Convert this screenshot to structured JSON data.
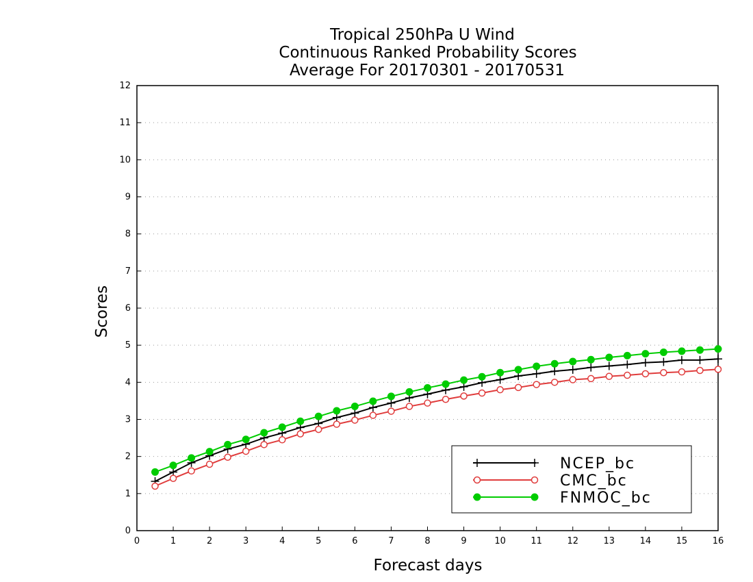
{
  "chart_data": {
    "type": "line",
    "title": [
      "Tropical 250hPa U Wind",
      "Continuous Ranked Probability Scores",
      "Average For 20170301 - 20170531"
    ],
    "xlabel": "Forecast days",
    "ylabel": "Scores",
    "xlim": [
      0,
      16
    ],
    "ylim": [
      0,
      12
    ],
    "xticks": [
      "0",
      "1",
      "2",
      "3",
      "4",
      "5",
      "6",
      "7",
      "8",
      "9",
      "10",
      "11",
      "12",
      "13",
      "14",
      "15",
      "16"
    ],
    "yticks": [
      "0",
      "1",
      "2",
      "3",
      "4",
      "5",
      "6",
      "7",
      "8",
      "9",
      "10",
      "11",
      "12"
    ],
    "grid": "horizontal dotted",
    "legend_position": "bottom-right",
    "x": [
      0.5,
      1,
      1.5,
      2,
      2.5,
      3,
      3.5,
      4,
      4.5,
      5,
      5.5,
      6,
      6.5,
      7,
      7.5,
      8,
      8.5,
      9,
      9.5,
      10,
      10.5,
      11,
      11.5,
      12,
      12.5,
      13,
      13.5,
      14,
      14.5,
      15,
      15.5,
      16
    ],
    "series": [
      {
        "name": "NCEP_bc",
        "color": "#000000",
        "marker": "plus",
        "values": [
          1.33,
          1.58,
          1.83,
          2.02,
          2.2,
          2.33,
          2.5,
          2.63,
          2.78,
          2.89,
          3.05,
          3.17,
          3.32,
          3.44,
          3.58,
          3.68,
          3.79,
          3.88,
          3.99,
          4.07,
          4.17,
          4.23,
          4.3,
          4.34,
          4.4,
          4.44,
          4.48,
          4.53,
          4.55,
          4.6,
          4.6,
          4.63
        ]
      },
      {
        "name": "CMC_bc",
        "color": "#e03c3c",
        "marker": "open-circle",
        "values": [
          1.2,
          1.41,
          1.61,
          1.79,
          1.98,
          2.14,
          2.32,
          2.45,
          2.61,
          2.73,
          2.87,
          2.98,
          3.11,
          3.22,
          3.35,
          3.44,
          3.54,
          3.63,
          3.71,
          3.8,
          3.86,
          3.94,
          4.0,
          4.07,
          4.1,
          4.16,
          4.19,
          4.23,
          4.26,
          4.28,
          4.32,
          4.35
        ]
      },
      {
        "name": "FNMOC_bc",
        "color": "#00cc00",
        "marker": "filled-circle",
        "values": [
          1.58,
          1.76,
          1.96,
          2.13,
          2.32,
          2.46,
          2.64,
          2.79,
          2.95,
          3.08,
          3.23,
          3.35,
          3.49,
          3.62,
          3.74,
          3.85,
          3.95,
          4.06,
          4.15,
          4.26,
          4.34,
          4.43,
          4.5,
          4.56,
          4.61,
          4.67,
          4.72,
          4.77,
          4.81,
          4.84,
          4.87,
          4.9
        ]
      }
    ]
  }
}
